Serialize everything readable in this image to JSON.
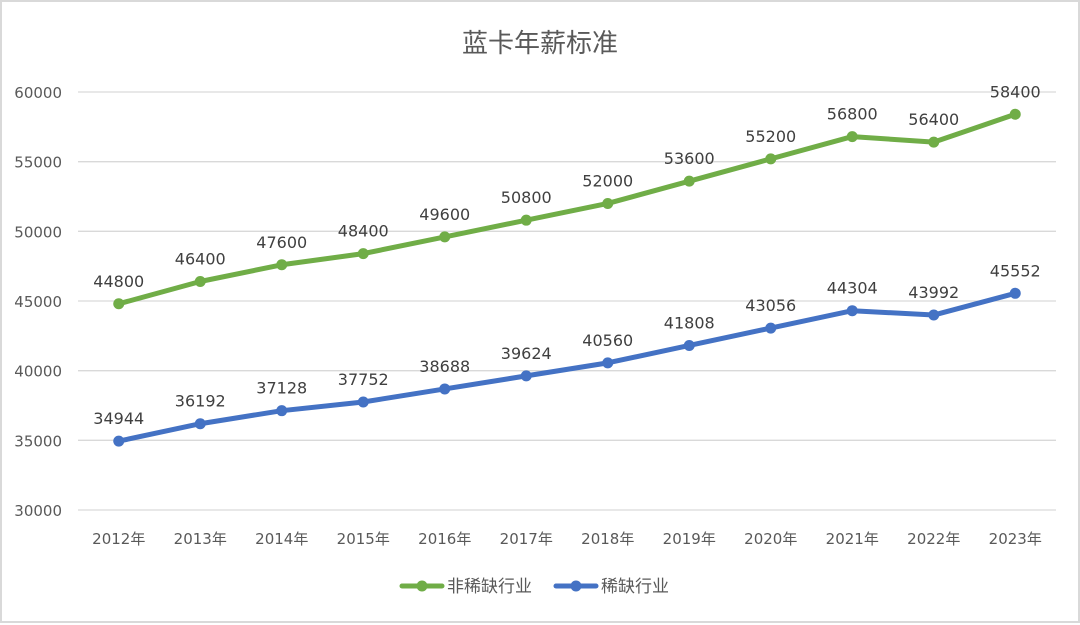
{
  "chart_data": {
    "type": "line",
    "title": "蓝卡年薪标准",
    "xlabel": "",
    "ylabel": "",
    "categories": [
      "2012年",
      "2013年",
      "2014年",
      "2015年",
      "2016年",
      "2017年",
      "2018年",
      "2019年",
      "2020年",
      "2021年",
      "2022年",
      "2023年"
    ],
    "series": [
      {
        "name": "非稀缺行业",
        "color": "#70ad47",
        "values": [
          44800,
          46400,
          47600,
          48400,
          49600,
          50800,
          52000,
          53600,
          55200,
          56800,
          56400,
          58400
        ]
      },
      {
        "name": "稀缺行业",
        "color": "#4472c4",
        "values": [
          34944,
          36192,
          37128,
          37752,
          38688,
          39624,
          40560,
          41808,
          43056,
          44304,
          43992,
          45552
        ]
      }
    ],
    "ylim": [
      30000,
      60000
    ],
    "yticks": [
      30000,
      35000,
      40000,
      45000,
      50000,
      55000,
      60000
    ],
    "grid": true,
    "data_labels": true,
    "legend_position": "bottom"
  },
  "legend": {
    "items": [
      {
        "label": "非稀缺行业",
        "color": "#70ad47"
      },
      {
        "label": "稀缺行业",
        "color": "#4472c4"
      }
    ]
  }
}
